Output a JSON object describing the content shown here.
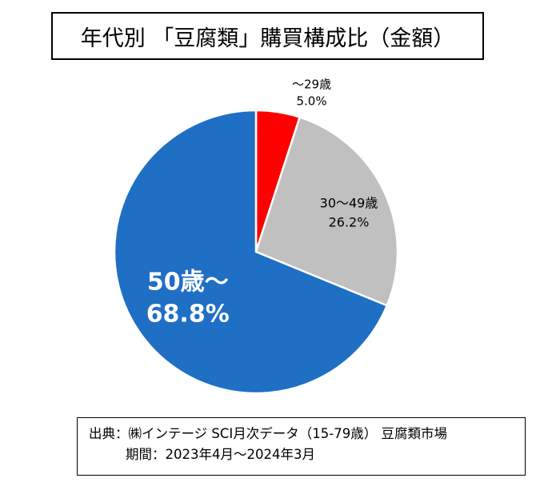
{
  "title": "年代別 「豆腐類」購買構成比（金額）",
  "chart_data": {
    "type": "pie",
    "title": "年代別 「豆腐類」購買構成比（金額）",
    "slices": [
      {
        "label": "～29歳",
        "value": 5.0,
        "value_label": "5.0%",
        "color": "#ff0000"
      },
      {
        "label": "30～49歳",
        "value": 26.2,
        "value_label": "26.2%",
        "color": "#c0c0c0"
      },
      {
        "label": "50歳～",
        "value": 68.8,
        "value_label": "68.8%",
        "color": "#1f6fc5"
      }
    ],
    "start_angle": "12 o'clock",
    "direction": "clockwise"
  },
  "source": {
    "line1": "出典：㈱インテージ SCI月次データ（15-79歳） 豆腐類市場",
    "line2": "期間：2023年4月～2024年3月"
  }
}
